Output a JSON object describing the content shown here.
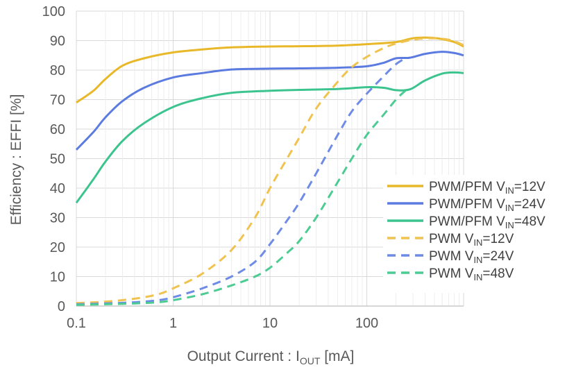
{
  "chart_data": {
    "type": "line",
    "xscale": "log",
    "xlim": [
      0.1,
      1000
    ],
    "ylim": [
      0,
      100
    ],
    "grid": true,
    "legend_position": "bottom-right",
    "xlabel": {
      "pre": "Output Current : I",
      "sub": "OUT",
      "post": " [mA]"
    },
    "ylabel": "Efficiency : EFFI [%]",
    "x_ticks": [
      {
        "value": 0.1,
        "label": "0.1"
      },
      {
        "value": 1,
        "label": "1"
      },
      {
        "value": 10,
        "label": "10"
      },
      {
        "value": 100,
        "label": "100"
      }
    ],
    "y_ticks": [
      {
        "value": 0,
        "label": "0"
      },
      {
        "value": 10,
        "label": "10"
      },
      {
        "value": 20,
        "label": "20"
      },
      {
        "value": 30,
        "label": "30"
      },
      {
        "value": 40,
        "label": "40"
      },
      {
        "value": 50,
        "label": "50"
      },
      {
        "value": 60,
        "label": "60"
      },
      {
        "value": 70,
        "label": "70"
      },
      {
        "value": 80,
        "label": "80"
      },
      {
        "value": 90,
        "label": "90"
      },
      {
        "value": 100,
        "label": "100"
      }
    ],
    "series": [
      {
        "name": "PWM/PFM VIN=12V",
        "legend_pre": "PWM/PFM V",
        "legend_sub": "IN",
        "legend_post": "=12V",
        "color": "#E8B828",
        "dashed": false,
        "x": [
          0.1,
          0.15,
          0.2,
          0.3,
          0.5,
          1,
          2,
          4,
          10,
          20,
          50,
          100,
          200,
          300,
          450,
          600,
          800,
          1000
        ],
        "y": [
          69,
          73,
          77,
          81.5,
          84,
          86,
          87,
          87.7,
          88,
          88.1,
          88.3,
          88.8,
          89.5,
          90.8,
          91,
          90.5,
          89.5,
          88
        ]
      },
      {
        "name": "PWM/PFM VIN=24V",
        "legend_pre": "PWM/PFM V",
        "legend_sub": "IN",
        "legend_post": "=24V",
        "color": "#5B7BE0",
        "dashed": false,
        "x": [
          0.1,
          0.15,
          0.2,
          0.3,
          0.5,
          1,
          2,
          4,
          10,
          20,
          50,
          100,
          150,
          200,
          280,
          400,
          600,
          800,
          1000
        ],
        "y": [
          53,
          59,
          64,
          69.5,
          74,
          77.5,
          79,
          80.2,
          80.5,
          80.6,
          80.8,
          81.3,
          82.5,
          84,
          84.2,
          85.5,
          86.2,
          85.8,
          85
        ]
      },
      {
        "name": "PWM/PFM VIN=48V",
        "legend_pre": "PWM/PFM V",
        "legend_sub": "IN",
        "legend_post": "=48V",
        "color": "#3CC48E",
        "dashed": false,
        "x": [
          0.1,
          0.15,
          0.2,
          0.3,
          0.5,
          1,
          2,
          4,
          10,
          20,
          50,
          100,
          150,
          200,
          280,
          400,
          600,
          800,
          1000
        ],
        "y": [
          35,
          43,
          49,
          56,
          62,
          67.5,
          70.5,
          72.3,
          73,
          73.3,
          73.6,
          74.2,
          74,
          73.2,
          73.5,
          76.5,
          78.8,
          79.2,
          79
        ]
      },
      {
        "name": "PWM VIN=12V",
        "legend_pre": "PWM V",
        "legend_sub": "IN",
        "legend_post": "=12V",
        "color": "#F0C350",
        "dashed": true,
        "x": [
          0.1,
          0.2,
          0.4,
          0.7,
          1,
          2,
          4,
          7,
          10,
          15,
          20,
          30,
          50,
          70,
          100,
          150,
          200,
          300,
          450,
          700,
          1000
        ],
        "y": [
          1,
          1.5,
          2.5,
          4,
          6,
          11,
          19,
          30,
          40,
          50,
          57,
          67,
          76,
          81,
          84.5,
          87.5,
          89,
          90.3,
          90.8,
          90.3,
          88.5
        ]
      },
      {
        "name": "PWM VIN=24V",
        "legend_pre": "PWM V",
        "legend_sub": "IN",
        "legend_post": "=24V",
        "color": "#6E8BE6",
        "dashed": true,
        "x": [
          0.1,
          0.2,
          0.4,
          0.7,
          1,
          2,
          4,
          7,
          10,
          15,
          20,
          30,
          50,
          70,
          100,
          150,
          200,
          250
        ],
        "y": [
          0.6,
          0.9,
          1.3,
          2,
          3,
          6,
          10,
          15,
          21,
          29,
          35,
          45,
          58,
          66,
          72,
          78,
          82,
          84
        ]
      },
      {
        "name": "PWM VIN=48V",
        "legend_pre": "PWM V",
        "legend_sub": "IN",
        "legend_post": "=48V",
        "color": "#4CCB92",
        "dashed": true,
        "x": [
          0.1,
          0.2,
          0.4,
          0.7,
          1,
          2,
          4,
          7,
          10,
          15,
          20,
          30,
          50,
          70,
          100,
          150,
          200,
          250
        ],
        "y": [
          0.4,
          0.6,
          0.9,
          1.3,
          2,
          4,
          7,
          10,
          13,
          18,
          22,
          30,
          42,
          50,
          58,
          65,
          70,
          73
        ]
      }
    ]
  }
}
